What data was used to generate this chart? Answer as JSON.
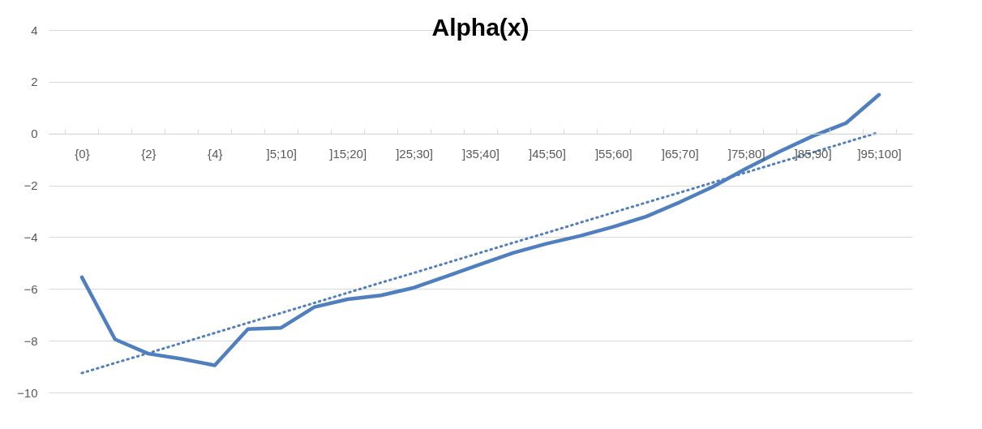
{
  "chart_data": {
    "type": "line",
    "title": "Alpha(x)",
    "categories": [
      "{0}",
      null,
      "{2}",
      null,
      "{4}",
      null,
      "]5;10]",
      null,
      "]15;20]",
      null,
      "]25;30]",
      null,
      "]35;40]",
      null,
      "]45;50]",
      null,
      "]55;60]",
      null,
      "]65;70]",
      null,
      "]75;80]",
      null,
      "]85;90]",
      null,
      "]95;100]"
    ],
    "series": [
      {
        "color": "#4f7fbf",
        "line_style": "solid",
        "values": [
          -5.55,
          -7.95,
          -8.5,
          -8.7,
          -8.95,
          -7.55,
          -7.5,
          -6.7,
          -6.4,
          -6.25,
          -5.95,
          -5.5,
          -5.05,
          -4.6,
          -4.25,
          -3.95,
          -3.6,
          -3.2,
          -2.65,
          -2.05,
          -1.35,
          -0.7,
          -0.1,
          0.4,
          1.5
        ]
      },
      {
        "type": "line",
        "color": "#4f7fbf",
        "line_style": "dotted",
        "values": [
          -9.25,
          -8.86,
          -8.48,
          -8.09,
          -7.7,
          -7.31,
          -6.93,
          -6.54,
          -6.15,
          -5.76,
          -5.38,
          -4.99,
          -4.6,
          -4.21,
          -3.83,
          -3.44,
          -3.05,
          -2.66,
          -2.28,
          -1.89,
          -1.5,
          -1.11,
          -0.73,
          -0.34,
          0.05
        ]
      }
    ],
    "ylim": [
      -10,
      4
    ],
    "yticks": [
      -10,
      -8,
      -6,
      -4,
      -2,
      0,
      2,
      4
    ],
    "grid": "y"
  }
}
